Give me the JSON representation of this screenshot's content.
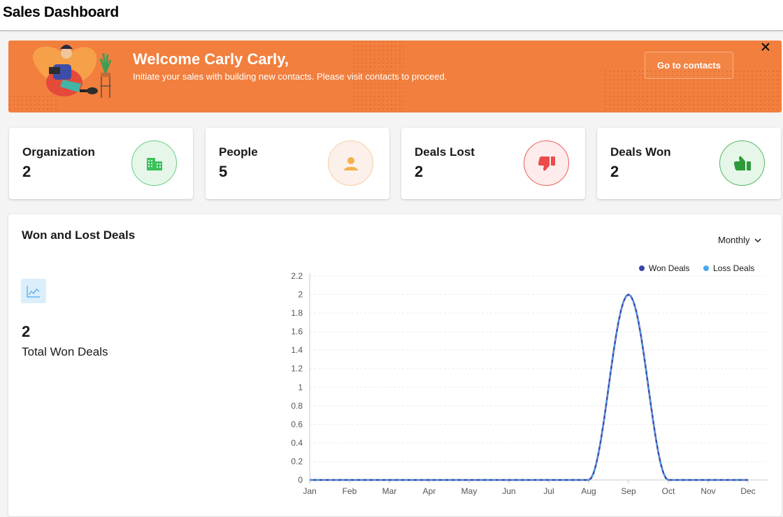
{
  "header": {
    "title": "Sales Dashboard"
  },
  "banner": {
    "welcome": "Welcome Carly Carly,",
    "subtitle": "Initiate your sales with building new contacts. Please visit contacts to proceed.",
    "button": "Go to contacts",
    "close": "✕"
  },
  "stats": [
    {
      "label": "Organization",
      "value": "2",
      "icon": "building-icon",
      "color": "#3cc25b",
      "bg": "#e6f7ea",
      "border": "#6bcf83"
    },
    {
      "label": "People",
      "value": "5",
      "icon": "person-icon",
      "color": "#f6b04e",
      "bg": "#fcf0ea",
      "border": "#f7cf9f"
    },
    {
      "label": "Deals Lost",
      "value": "2",
      "icon": "thumbs-down-icon",
      "color": "#ec4b4b",
      "bg": "#fdeceb",
      "border": "#ee5d5d"
    },
    {
      "label": "Deals Won",
      "value": "2",
      "icon": "thumbs-up-icon",
      "color": "#2c9a3a",
      "bg": "#e6f6e9",
      "border": "#55b965"
    }
  ],
  "panel": {
    "title": "Won and Lost Deals",
    "period": "Monthly",
    "total_value": "2",
    "total_label": "Total Won Deals"
  },
  "chart_data": {
    "type": "line",
    "categories": [
      "Jan",
      "Feb",
      "Mar",
      "Apr",
      "May",
      "Jun",
      "Jul",
      "Aug",
      "Sep",
      "Oct",
      "Nov",
      "Dec"
    ],
    "series": [
      {
        "name": "Won Deals",
        "values": [
          0,
          0,
          0,
          0,
          0,
          0,
          0,
          0,
          2,
          0,
          0,
          0
        ],
        "color": "#3b44a6"
      },
      {
        "name": "Loss Deals",
        "values": [
          0,
          0,
          0,
          0,
          0,
          0,
          0,
          0,
          2,
          0,
          0,
          0
        ],
        "color": "#4aa8ee"
      }
    ],
    "yticks": [
      "0",
      "0.2",
      "0.4",
      "0.6",
      "0.8",
      "1",
      "1.2",
      "1.4",
      "1.6",
      "1.8",
      "2",
      "2.2"
    ],
    "ylim": [
      0,
      2.2
    ],
    "grid": true,
    "legend": "top-right"
  }
}
